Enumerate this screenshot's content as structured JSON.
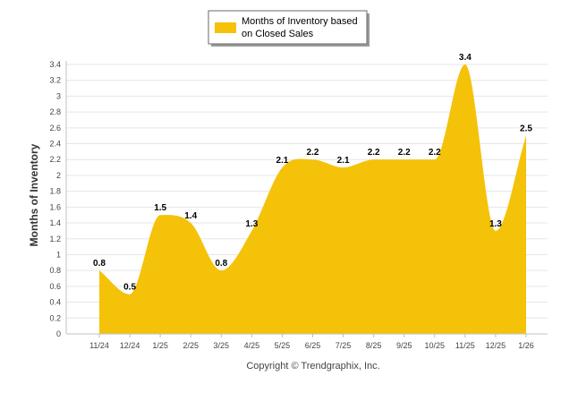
{
  "chart_data": {
    "type": "area",
    "title": "",
    "xlabel": "",
    "ylabel": "Months of Inventory",
    "ylim": [
      0,
      3.4
    ],
    "y_ticks": [
      "0",
      "0.2",
      "0.4",
      "0.6",
      "0.8",
      "1",
      "1.2",
      "1.4",
      "1.6",
      "1.8",
      "2",
      "2.2",
      "2.4",
      "2.6",
      "2.8",
      "3",
      "3.2",
      "3.4"
    ],
    "categories": [
      "11/24",
      "12/24",
      "1/25",
      "2/25",
      "3/25",
      "4/25",
      "5/25",
      "6/25",
      "7/25",
      "8/25",
      "9/25",
      "10/25",
      "11/25",
      "12/25",
      "1/26"
    ],
    "series": [
      {
        "name": "Months of Inventory based on Closed Sales",
        "values": [
          0.8,
          0.5,
          1.5,
          1.4,
          0.8,
          1.3,
          2.1,
          2.2,
          2.1,
          2.2,
          2.2,
          2.2,
          3.4,
          1.3,
          2.5
        ],
        "data_labels": [
          "0.8",
          "0.5",
          "1.5",
          "1.4",
          "0.8",
          "1.3",
          "2.1",
          "2.2",
          "2.1",
          "2.2",
          "2.2",
          "2.2",
          "3.4",
          "1.3",
          "2.5"
        ]
      }
    ],
    "legend": {
      "line1": "Months of Inventory based",
      "line2": "on Closed Sales",
      "placement": "top-center"
    },
    "colors": {
      "fill": "#F5C20A",
      "grid": "#E6E6E6",
      "axis": "#C0C0C0"
    },
    "grid": true
  },
  "footer": {
    "copyright": "Copyright © Trendgraphix, Inc."
  }
}
